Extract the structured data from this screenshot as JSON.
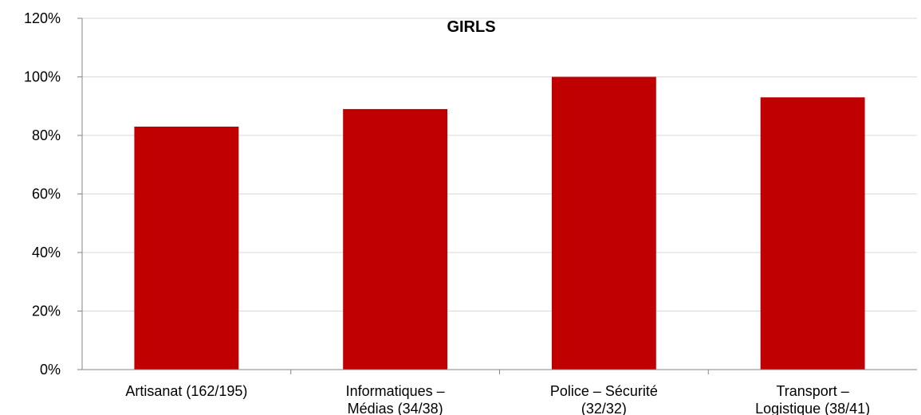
{
  "chart_data": {
    "type": "bar",
    "title": "GIRLS",
    "xlabel": "",
    "ylabel": "",
    "categories": [
      [
        "Artisanat (162/195)"
      ],
      [
        "Informatiques –",
        "Médias (34/38)"
      ],
      [
        "Police – Sécurité",
        "(32/32)"
      ],
      [
        "Transport –",
        "Logistique (38/41)"
      ]
    ],
    "values": [
      0.83,
      0.89,
      1.0,
      0.93
    ],
    "ylim": [
      0,
      1.2
    ],
    "yticks": [
      0,
      0.2,
      0.4,
      0.6,
      0.8,
      1.0,
      1.2
    ],
    "ytick_labels": [
      "0%",
      "20%",
      "40%",
      "60%",
      "80%",
      "100%",
      "120%"
    ],
    "grid": true,
    "legend": "none",
    "colors": {
      "bar": "#C00000",
      "grid": "#D9D9D9",
      "axis": "#868686",
      "text": "#000000"
    }
  }
}
